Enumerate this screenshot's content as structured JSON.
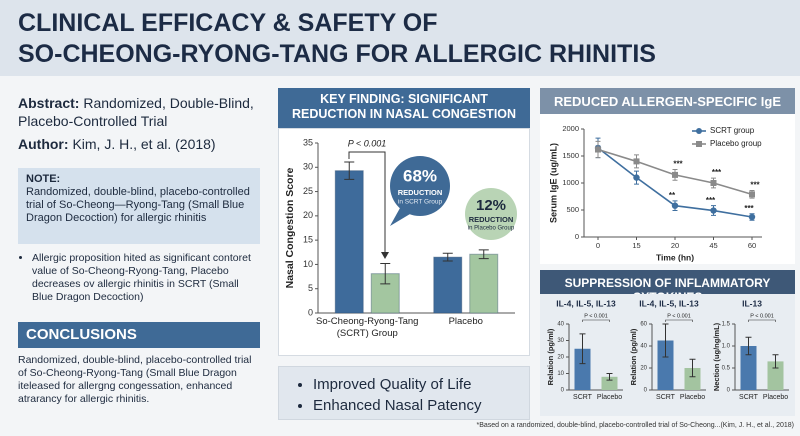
{
  "header": {
    "title_lines": [
      "CLINICAL EFFICACY & SAFETY OF",
      "SO-CHEONG-RYONG-TANG FOR ALLERGIC RHINITIS"
    ]
  },
  "left": {
    "abstract_label": "Abstract:",
    "abstract": "Randomized, Double-Blind, Placebo-Controlled Trial",
    "author_label": "Author:",
    "author": "Kim, J. H., et al. (2018)",
    "note_label": "NOTE:",
    "note": "Randomized, double-blind, placebo-controlled trial of So-Cheong—Ryong-Tang (Small Blue Dragon Decoction) for allergic rhinitis",
    "bullet": "Allergic proposition hited as significant contoret value of So-Cheong-Ryong-Tang, Placebo decreases ov allergic rhinitis in SCRT (Small Blue Dragon Decoction)",
    "conclusions_title": "CONCLUSIONS",
    "conclusions": "Randomized, double-blind, placebo-controlled trial of So-Cheong-Ryong-Tang (Small Blue Dragon iteleased for allergng congessation, enhanced atrarancy for allergic rhinitis."
  },
  "key_findings": [
    "Improved Quality of Life",
    "Enhanced Nasal Patency"
  ],
  "cytokines_title": "SUPPRESSION OF INFLAMMATORY CYTOKINES",
  "footnote": "*Based on a randomized, double-blind, placebo-controlled trial of So-Cheong...(Kim, J. H., et al., 2018)",
  "chart_data": [
    {
      "type": "bar",
      "title": "KEY FINDING: SIGNIFICANT REDUCTION IN NASAL CONGESTION",
      "ylabel": "Nasal Congestion Score",
      "categories": [
        "So-Cheong-Ryong-Tang (SCRT) Group",
        "Placebo"
      ],
      "series": [
        {
          "color": "#3e6b9b",
          "values": [
            29.3,
            11.5
          ],
          "errors": [
            1.8,
            0.8
          ]
        },
        {
          "color": "#a3c6a0",
          "values": [
            8.1,
            12.1
          ],
          "errors": [
            2.1,
            0.9
          ]
        }
      ],
      "ylim": [
        0,
        35
      ],
      "yticks": [
        0,
        5,
        10,
        15,
        20,
        25,
        30,
        35
      ],
      "annotation": "P < 0.001",
      "callouts": [
        {
          "percent": "68%",
          "text": "REDUCTION",
          "note": "in SCRT Group"
        },
        {
          "percent": "12%",
          "text": "REDUCTION",
          "note": "in Placebo Group"
        }
      ]
    },
    {
      "type": "line",
      "title": "REDUCED ALLERGEN-SPECIFIC IgE",
      "xlabel": "Time (hn)",
      "ylabel": "Serum IgE (ug/mL)",
      "categories": [
        "0",
        "15",
        "20",
        "45",
        "60"
      ],
      "series": [
        {
          "name": "SCRT group",
          "color": "#3f6f9f",
          "marker": "circle",
          "values": [
            1650,
            1100,
            580,
            490,
            370
          ],
          "errors": [
            180,
            120,
            90,
            90,
            60
          ],
          "significance": [
            null,
            null,
            "**",
            "***",
            "***"
          ]
        },
        {
          "name": "Placebo group",
          "color": "#8a8a8a",
          "marker": "square",
          "values": [
            1620,
            1400,
            1150,
            1000,
            790
          ],
          "errors": [
            150,
            120,
            100,
            90,
            70
          ],
          "significance": [
            null,
            null,
            "***",
            "***",
            "***"
          ]
        }
      ],
      "ylim": [
        0,
        2000
      ],
      "yticks": [
        0,
        500,
        1000,
        1500,
        2000
      ],
      "legend": "upper right"
    },
    {
      "type": "bar",
      "title": "IL-4, IL-5, IL-13",
      "ylabel": "Relation (pg/ml)",
      "annotation": "P < 0.001",
      "categories": [
        "SCRT",
        "Placebo"
      ],
      "values": [
        25,
        8
      ],
      "errors": [
        9,
        2
      ],
      "colors": [
        "#4a79ad",
        "#a3c4a0"
      ],
      "ylim": [
        0,
        40
      ],
      "yticks": [
        0,
        10,
        20,
        30,
        40
      ]
    },
    {
      "type": "bar",
      "title": "IL-4, IL-5, IL-13",
      "ylabel": "Relation (pg/ml)",
      "annotation": "P < 0.001",
      "categories": [
        "SCRT",
        "Placebo"
      ],
      "values": [
        45,
        20
      ],
      "errors": [
        15,
        8
      ],
      "colors": [
        "#4a79ad",
        "#a3c4a0"
      ],
      "ylim": [
        0,
        60
      ],
      "yticks": [
        0,
        20,
        40,
        60
      ]
    },
    {
      "type": "bar",
      "title": "IL-13",
      "ylabel": "Nection (ug/ng/mL)",
      "annotation": "P < 0.001",
      "categories": [
        "SCRT",
        "Placebo"
      ],
      "values": [
        1.0,
        0.65
      ],
      "errors": [
        0.2,
        0.15
      ],
      "colors": [
        "#4a79ad",
        "#a3c4a0"
      ],
      "ylim": [
        0,
        1.5
      ],
      "yticks": [
        0,
        0.5,
        {
          "value": 1,
          "label": "1.0"
        },
        1.5
      ]
    }
  ]
}
